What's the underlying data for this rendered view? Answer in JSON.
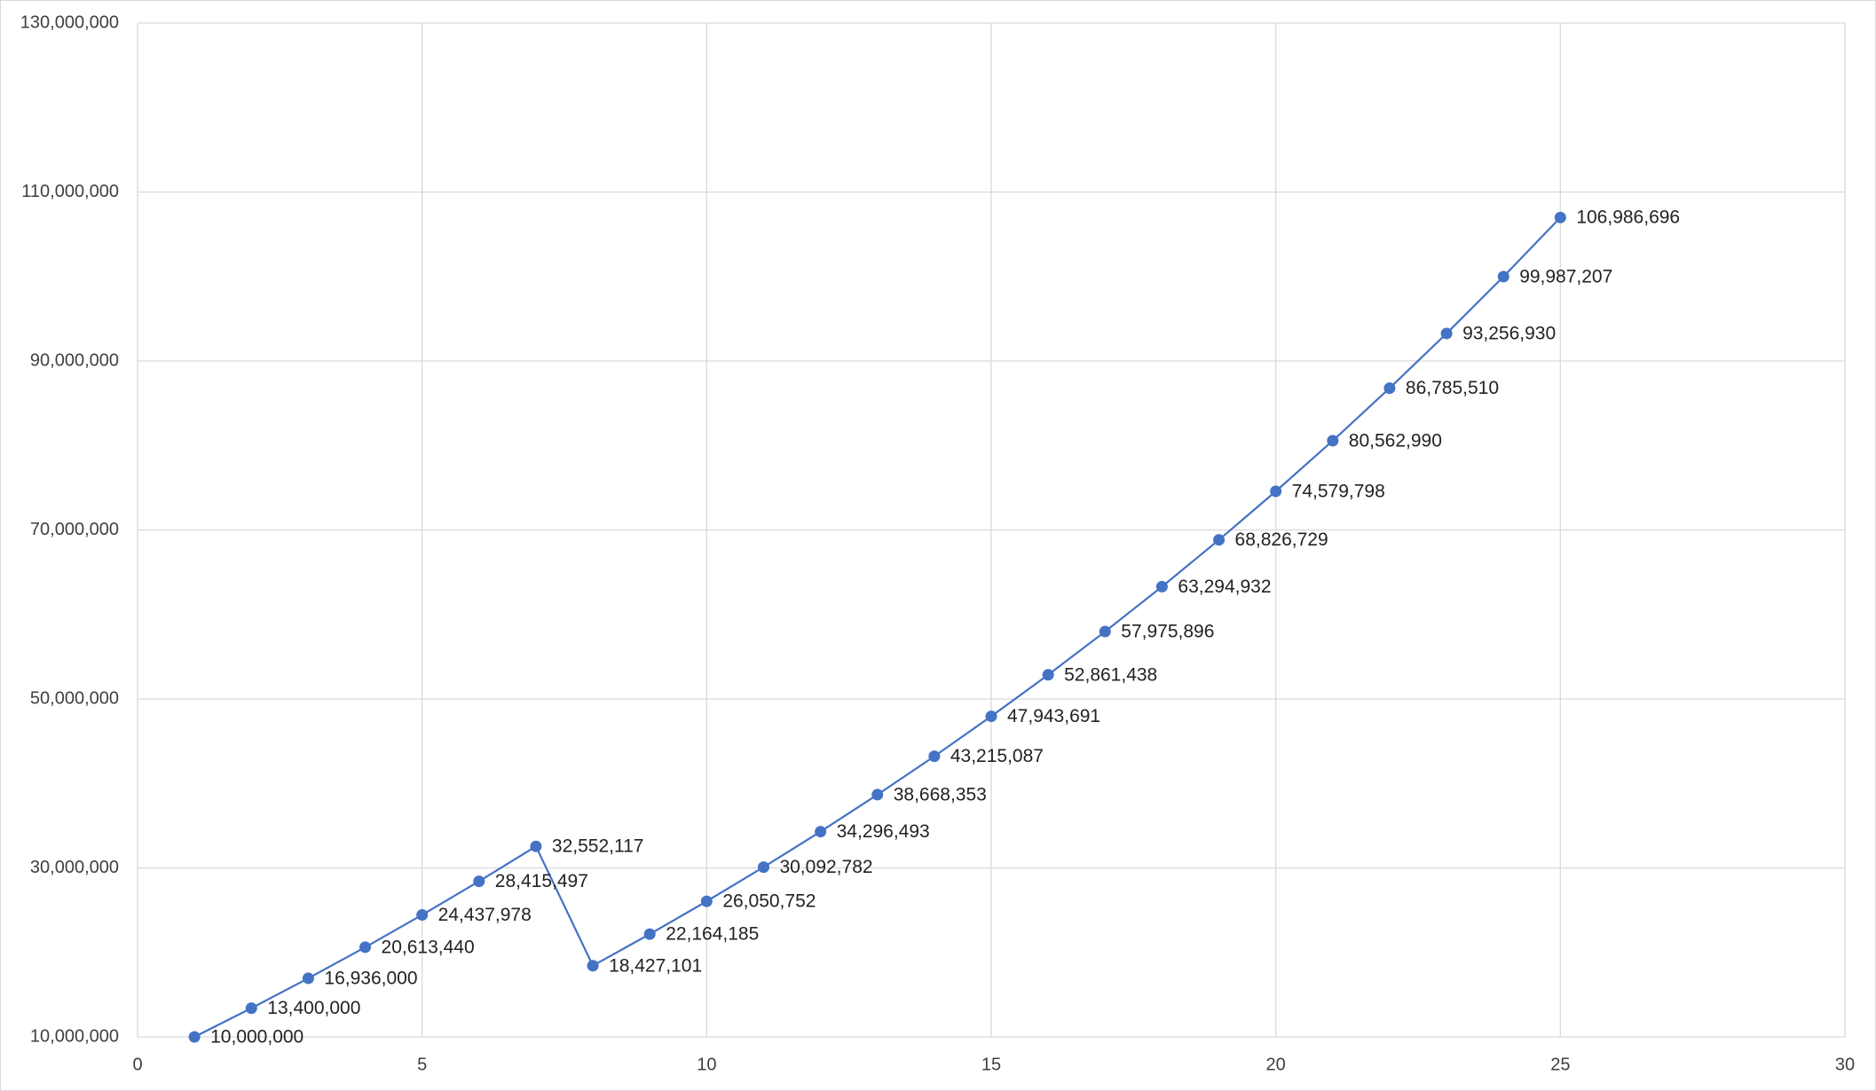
{
  "chart_data": {
    "type": "line",
    "x": [
      1,
      2,
      3,
      4,
      5,
      6,
      7,
      8,
      9,
      10,
      11,
      12,
      13,
      14,
      15,
      16,
      17,
      18,
      19,
      20,
      21,
      22,
      23,
      24,
      25
    ],
    "values": [
      10000000,
      13400000,
      16936000,
      20613440,
      24437978,
      28415497,
      32552117,
      18427101,
      22164185,
      26050752,
      30092782,
      34296493,
      38668353,
      43215087,
      47943691,
      52861438,
      57975896,
      63294932,
      68826729,
      74579798,
      80562990,
      86785510,
      93256930,
      99987207,
      106986696
    ],
    "value_labels": [
      "10,000,000",
      "13,400,000",
      "16,936,000",
      "20,613,440",
      "24,437,978",
      "28,415,497",
      "32,552,117",
      "18,427,101",
      "22,164,185",
      "26,050,752",
      "30,092,782",
      "34,296,493",
      "38,668,353",
      "43,215,087",
      "47,943,691",
      "52,861,438",
      "57,975,896",
      "63,294,932",
      "68,826,729",
      "74,579,798",
      "80,562,990",
      "86,785,510",
      "93,256,930",
      "99,987,207",
      "106,986,696"
    ],
    "color": "#4472c4",
    "xlim": [
      0,
      30
    ],
    "xticks": [
      0,
      5,
      10,
      15,
      20,
      25,
      30
    ],
    "ylim": [
      10000000,
      130000000
    ],
    "yticks": [
      {
        "value": 10000000,
        "label": "10,000,000"
      },
      {
        "value": 30000000,
        "label": "30,000,000"
      },
      {
        "value": 50000000,
        "label": "50,000,000"
      },
      {
        "value": 70000000,
        "label": "70,000,000"
      },
      {
        "value": 90000000,
        "label": "90,000,000"
      },
      {
        "value": 110000000,
        "label": "110,000,000"
      },
      {
        "value": 130000000,
        "label": "130,000,000"
      }
    ],
    "grid": true
  }
}
